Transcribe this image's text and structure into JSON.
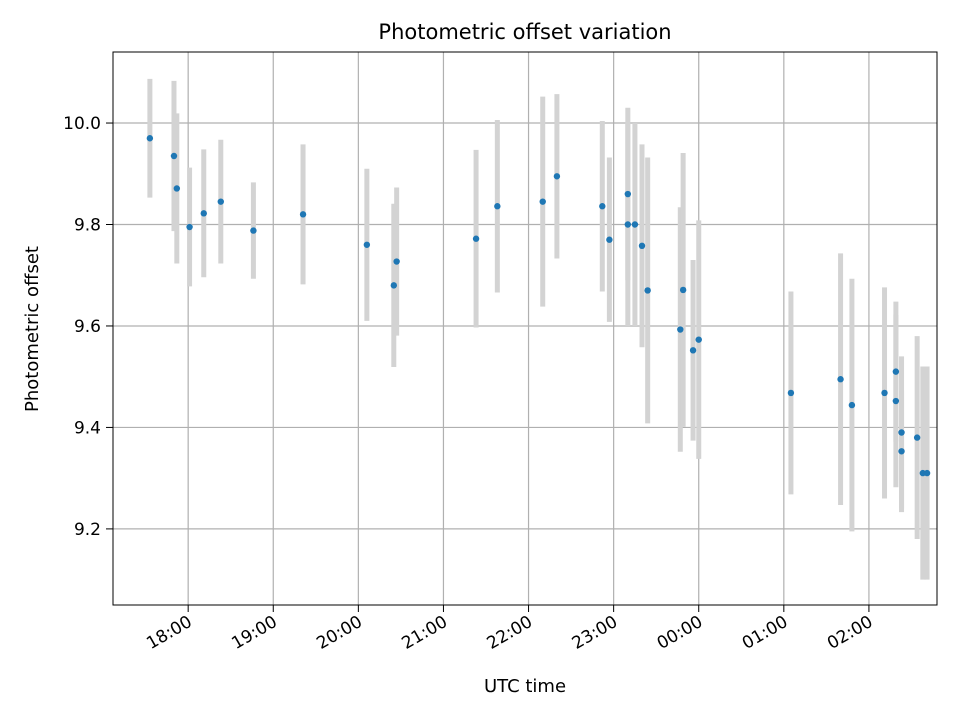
{
  "chart_data": {
    "type": "scatter",
    "title": "Photometric offset variation",
    "xlabel": "UTC time",
    "ylabel": "Photometric offset",
    "xlim": [
      "17:07",
      "02:48"
    ],
    "ylim": [
      9.05,
      10.14
    ],
    "x_ticks": [
      "18:00",
      "19:00",
      "20:00",
      "21:00",
      "22:00",
      "23:00",
      "00:00",
      "01:00",
      "02:00"
    ],
    "y_ticks": [
      "9.2",
      "9.4",
      "9.6",
      "9.8",
      "10.0"
    ],
    "grid": true,
    "colors": {
      "marker": "#1f77b4",
      "errorbar": "#d3d3d3",
      "grid": "#b0b0b0"
    },
    "points": [
      {
        "time": "17:33",
        "y": 9.97,
        "err": 0.117
      },
      {
        "time": "17:50",
        "y": 9.935,
        "err": 0.148
      },
      {
        "time": "17:52",
        "y": 9.871,
        "err": 0.148
      },
      {
        "time": "18:01",
        "y": 9.795,
        "err": 0.117
      },
      {
        "time": "18:11",
        "y": 9.822,
        "err": 0.126
      },
      {
        "time": "18:23",
        "y": 9.845,
        "err": 0.122
      },
      {
        "time": "18:46",
        "y": 9.788,
        "err": 0.095
      },
      {
        "time": "19:21",
        "y": 9.82,
        "err": 0.138
      },
      {
        "time": "20:06",
        "y": 9.76,
        "err": 0.15
      },
      {
        "time": "20:25",
        "y": 9.68,
        "err": 0.161
      },
      {
        "time": "20:27",
        "y": 9.727,
        "err": 0.146
      },
      {
        "time": "21:23",
        "y": 9.772,
        "err": 0.175
      },
      {
        "time": "21:38",
        "y": 9.836,
        "err": 0.17
      },
      {
        "time": "22:10",
        "y": 9.845,
        "err": 0.207
      },
      {
        "time": "22:20",
        "y": 9.895,
        "err": 0.162
      },
      {
        "time": "22:52",
        "y": 9.836,
        "err": 0.168
      },
      {
        "time": "22:57",
        "y": 9.77,
        "err": 0.162
      },
      {
        "time": "23:10",
        "y": 9.86,
        "err": 0.17
      },
      {
        "time": "23:10",
        "y": 9.8,
        "err": 0.2
      },
      {
        "time": "23:15",
        "y": 9.8,
        "err": 0.2
      },
      {
        "time": "23:20",
        "y": 9.758,
        "err": 0.2
      },
      {
        "time": "23:24",
        "y": 9.67,
        "err": 0.262
      },
      {
        "time": "23:47",
        "y": 9.593,
        "err": 0.241
      },
      {
        "time": "23:49",
        "y": 9.671,
        "err": 0.27
      },
      {
        "time": "23:56",
        "y": 9.552,
        "err": 0.178
      },
      {
        "time": "00:00",
        "y": 9.573,
        "err": 0.235
      },
      {
        "time": "01:05",
        "y": 9.468,
        "err": 0.2
      },
      {
        "time": "01:40",
        "y": 9.495,
        "err": 0.248
      },
      {
        "time": "01:48",
        "y": 9.444,
        "err": 0.249
      },
      {
        "time": "02:11",
        "y": 9.468,
        "err": 0.208
      },
      {
        "time": "02:19",
        "y": 9.51,
        "err": 0.138
      },
      {
        "time": "02:19",
        "y": 9.452,
        "err": 0.17
      },
      {
        "time": "02:23",
        "y": 9.39,
        "err": 0.15
      },
      {
        "time": "02:23",
        "y": 9.353,
        "err": 0.12
      },
      {
        "time": "02:34",
        "y": 9.38,
        "err": 0.2
      },
      {
        "time": "02:38",
        "y": 9.31,
        "err": 0.21
      },
      {
        "time": "02:41",
        "y": 9.31,
        "err": 0.21
      }
    ]
  }
}
